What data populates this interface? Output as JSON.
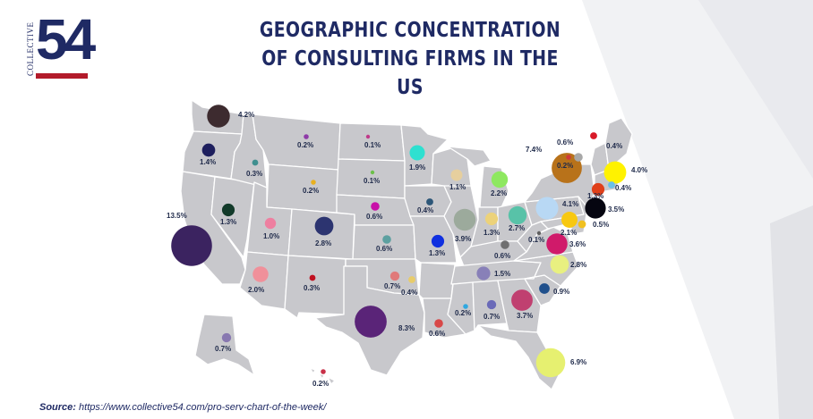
{
  "logo": {
    "top_text": "COLLECTIVE",
    "number": "54"
  },
  "title_line1": "GEOGRAPHIC CONCENTRATION",
  "title_line2": "OF CONSULTING FIRMS IN THE US",
  "source": {
    "label": "Source:",
    "url": "https://www.collective54.com/pro-serv-chart-of-the-week/"
  },
  "colors": {
    "title": "#1f2a64",
    "map": "#c8c8cc",
    "accent": "#b31b2a"
  },
  "chart_data": {
    "type": "bubble-map",
    "unit": "%",
    "bubbles": [
      {
        "label": "4.2%",
        "value": 4.2,
        "color": "#3d2b2f"
      },
      {
        "label": "1.4%",
        "value": 1.4,
        "color": "#1e1f5e"
      },
      {
        "label": "0.3%",
        "value": 0.3,
        "color": "#3f8f8f"
      },
      {
        "label": "0.2%",
        "value": 0.2,
        "color": "#8e3aa8"
      },
      {
        "label": "0.1%",
        "value": 0.1,
        "color": "#c03a8a"
      },
      {
        "label": "1.9%",
        "value": 1.9,
        "color": "#2ee0d0"
      },
      {
        "label": "0.2%",
        "value": 0.2,
        "color": "#e8b020"
      },
      {
        "label": "0.1%",
        "value": 0.1,
        "color": "#6cc04a"
      },
      {
        "label": "1.1%",
        "value": 1.1,
        "color": "#e6cf9e"
      },
      {
        "label": "2.2%",
        "value": 2.2,
        "color": "#8ee860"
      },
      {
        "label": "13.5%",
        "value": 13.5,
        "color": "#3b2360"
      },
      {
        "label": "1.3%",
        "value": 1.3,
        "color": "#123a2a"
      },
      {
        "label": "1.0%",
        "value": 1.0,
        "color": "#ee7fa0"
      },
      {
        "label": "2.8%",
        "value": 2.8,
        "color": "#2c3470"
      },
      {
        "label": "0.6%",
        "value": 0.6,
        "color": "#c80fa8"
      },
      {
        "label": "0.4%",
        "value": 0.4,
        "color": "#2c5678"
      },
      {
        "label": "3.9%",
        "value": 3.9,
        "color": "#9caa9c"
      },
      {
        "label": "1.3%",
        "value": 1.3,
        "color": "#ecd27a"
      },
      {
        "label": "2.7%",
        "value": 2.7,
        "color": "#58c2a8"
      },
      {
        "label": "7.4%",
        "value": 7.4,
        "color": "#b8721a"
      },
      {
        "label": "0.6%",
        "value": 0.6,
        "color": "#a8a8a8"
      },
      {
        "label": "0.4%",
        "value": 0.4,
        "color": "#d81a28"
      },
      {
        "label": "0.2%",
        "value": 0.2,
        "color": "#d03a3a"
      },
      {
        "label": "4.0%",
        "value": 4.0,
        "color": "#fff200"
      },
      {
        "label": "0.4%",
        "value": 0.4,
        "color": "#6ac0e8"
      },
      {
        "label": "1.3%",
        "value": 1.3,
        "color": "#e0401a"
      },
      {
        "label": "3.5%",
        "value": 3.5,
        "color": "#050510"
      },
      {
        "label": "0.5%",
        "value": 0.5,
        "color": "#f0c020"
      },
      {
        "label": "4.1%",
        "value": 4.1,
        "color": "#b8d8f4"
      },
      {
        "label": "2.1%",
        "value": 2.1,
        "color": "#f8c810"
      },
      {
        "label": "0.1%",
        "value": 0.1,
        "color": "#606060"
      },
      {
        "label": "3.6%",
        "value": 3.6,
        "color": "#d01a6a"
      },
      {
        "label": "2.8%",
        "value": 2.8,
        "color": "#e8f080"
      },
      {
        "label": "0.6%",
        "value": 0.6,
        "color": "#5ca0a0"
      },
      {
        "label": "1.3%",
        "value": 1.3,
        "color": "#1030e0"
      },
      {
        "label": "0.6%",
        "value": 0.6,
        "color": "#707070"
      },
      {
        "label": "1.5%",
        "value": 1.5,
        "color": "#8880b8"
      },
      {
        "label": "0.9%",
        "value": 0.9,
        "color": "#20508c"
      },
      {
        "label": "2.0%",
        "value": 2.0,
        "color": "#f0909a"
      },
      {
        "label": "0.3%",
        "value": 0.3,
        "color": "#c01020"
      },
      {
        "label": "0.7%",
        "value": 0.7,
        "color": "#e07a7a"
      },
      {
        "label": "0.4%",
        "value": 0.4,
        "color": "#e8cc6a"
      },
      {
        "label": "8.3%",
        "value": 8.3,
        "color": "#5a2478"
      },
      {
        "label": "0.6%",
        "value": 0.6,
        "color": "#d84848"
      },
      {
        "label": "0.2%",
        "value": 0.2,
        "color": "#30a8e0"
      },
      {
        "label": "0.7%",
        "value": 0.7,
        "color": "#6a6ab8"
      },
      {
        "label": "3.7%",
        "value": 3.7,
        "color": "#c04070"
      },
      {
        "label": "6.9%",
        "value": 6.9,
        "color": "#e6f070"
      },
      {
        "label": "0.7%",
        "value": 0.7,
        "color": "#8878b0"
      },
      {
        "label": "0.2%",
        "value": 0.2,
        "color": "#c83048"
      }
    ]
  }
}
